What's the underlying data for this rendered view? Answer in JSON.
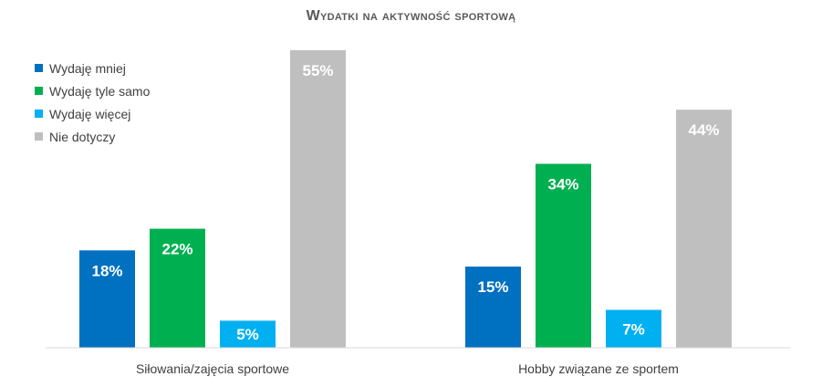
{
  "chart_data": {
    "type": "bar",
    "title": "Wydatki na aktywność sportową",
    "categories": [
      "Siłowania/zajęcia sportowe",
      "Hobby związane ze sportem"
    ],
    "series": [
      {
        "name": "Wydaję mniej",
        "values": [
          18,
          15
        ],
        "labels": [
          "18%",
          "15%"
        ],
        "color": "#0070c0"
      },
      {
        "name": "Wydaję tyle samo",
        "values": [
          22,
          34
        ],
        "labels": [
          "22%",
          "34%"
        ],
        "color": "#00b050"
      },
      {
        "name": "Wydaję więcej",
        "values": [
          5,
          7
        ],
        "labels": [
          "5%",
          "7%"
        ],
        "color": "#00b0f0"
      },
      {
        "name": "Nie dotyczy",
        "values": [
          55,
          44
        ],
        "labels": [
          "55%",
          "44%"
        ],
        "color": "#bfbfbf"
      }
    ],
    "ylim": [
      0,
      55
    ],
    "grid": false,
    "legend_position": "top-left"
  }
}
